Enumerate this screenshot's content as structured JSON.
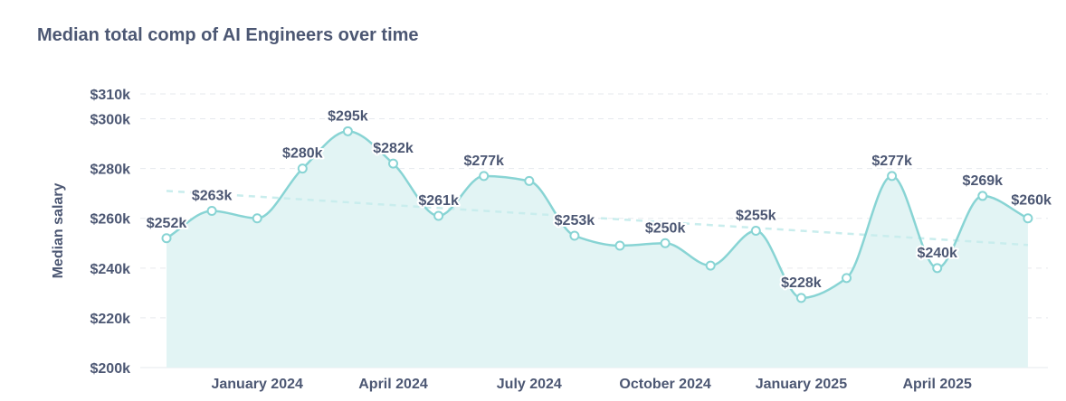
{
  "chart_data": {
    "type": "area",
    "title": "Median total comp of AI Engineers over time",
    "ylabel": "Median salary",
    "xlabel": "",
    "y_ticks": [
      200,
      220,
      240,
      260,
      280,
      300,
      310
    ],
    "y_tick_labels": [
      "$200k",
      "$220k",
      "$240k",
      "$260k",
      "$280k",
      "$300k",
      "$310k"
    ],
    "ylim": [
      200,
      310
    ],
    "x_tick_labels": [
      "January 2024",
      "April 2024",
      "July 2024",
      "October 2024",
      "January 2025",
      "April 2025"
    ],
    "x_tick_dates": [
      "2024-01",
      "2024-04",
      "2024-07",
      "2024-10",
      "2025-01",
      "2025-04"
    ],
    "x": [
      "2023-11",
      "2023-12",
      "2024-01",
      "2024-02",
      "2024-03",
      "2024-04",
      "2024-05",
      "2024-06",
      "2024-07",
      "2024-08",
      "2024-09",
      "2024-10",
      "2024-11",
      "2024-12",
      "2025-01",
      "2025-02",
      "2025-03",
      "2025-04",
      "2025-05",
      "2025-06"
    ],
    "values": [
      252,
      263,
      260,
      280,
      295,
      282,
      261,
      277,
      275,
      253,
      249,
      250,
      241,
      255,
      228,
      236,
      277,
      240,
      269,
      260
    ],
    "point_labels": [
      "$252k",
      "$263k",
      "",
      "$280k",
      "$295k",
      "$282k",
      "$261k",
      "$277k",
      "",
      "$253k",
      "",
      "$250k",
      "",
      "$255k",
      "$228k",
      "",
      "$277k",
      "$240k",
      "$269k",
      "$260k"
    ],
    "trendline": true,
    "grid": true,
    "colors": {
      "line": "#88d4d4",
      "fill": "#e2f4f4",
      "trend": "#c9eded",
      "text": "#4c5773"
    }
  }
}
